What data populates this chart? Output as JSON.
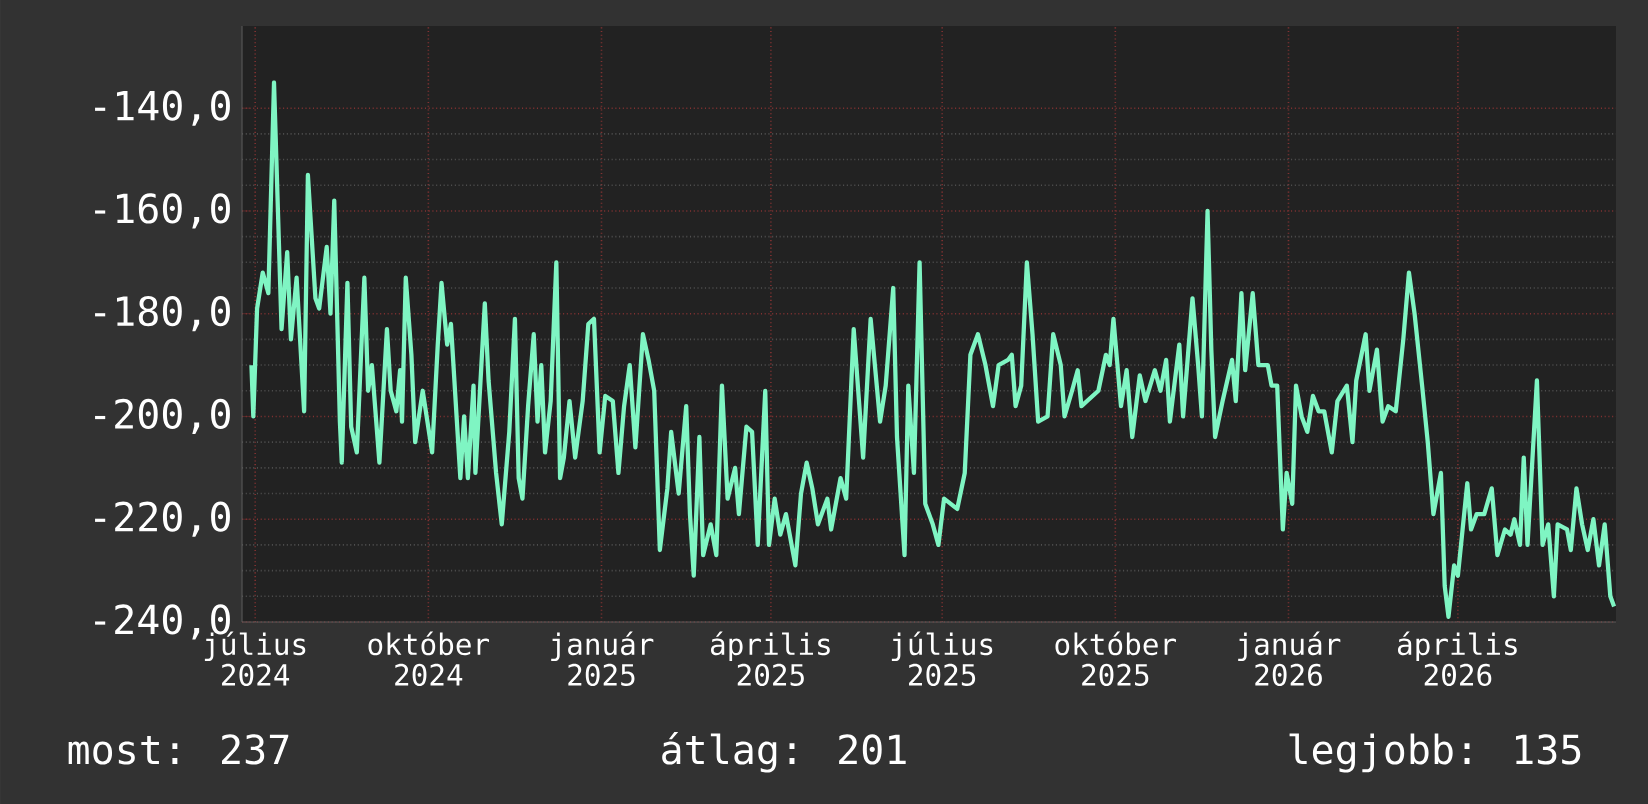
{
  "chart_data": {
    "type": "line",
    "color": "#7ff5c3",
    "grid": true,
    "x": [
      "2024-06-29",
      "2024-06-30",
      "2024-07-02",
      "2024-07-05",
      "2024-07-08",
      "2024-07-11",
      "2024-07-15",
      "2024-07-18",
      "2024-07-20",
      "2024-07-23",
      "2024-07-27",
      "2024-07-29",
      "2024-08-02",
      "2024-08-04",
      "2024-08-08",
      "2024-08-10",
      "2024-08-12",
      "2024-08-15",
      "2024-08-16",
      "2024-08-19",
      "2024-08-21",
      "2024-08-24",
      "2024-08-28",
      "2024-08-30",
      "2024-09-01",
      "2024-09-05",
      "2024-09-09",
      "2024-09-11",
      "2024-09-14",
      "2024-09-16",
      "2024-09-17",
      "2024-09-19",
      "2024-09-22",
      "2024-09-24",
      "2024-09-28",
      "2024-10-03",
      "2024-10-06",
      "2024-10-08",
      "2024-10-11",
      "2024-10-13",
      "2024-10-18",
      "2024-10-20",
      "2024-10-22",
      "2024-10-25",
      "2024-10-26",
      "2024-10-31",
      "2024-11-02",
      "2024-11-06",
      "2024-11-09",
      "2024-11-13",
      "2024-11-16",
      "2024-11-18",
      "2024-11-20",
      "2024-11-23",
      "2024-11-26",
      "2024-11-28",
      "2024-11-30",
      "2024-12-02",
      "2024-12-05",
      "2024-12-08",
      "2024-12-10",
      "2024-12-12",
      "2024-12-15",
      "2024-12-18",
      "2024-12-22",
      "2024-12-25",
      "2024-12-28",
      "2024-12-31",
      "2025-01-03",
      "2025-01-07",
      "2025-01-10",
      "2025-01-13",
      "2025-01-16",
      "2025-01-19",
      "2025-01-23",
      "2025-01-26",
      "2025-01-29",
      "2025-02-01",
      "2025-02-05",
      "2025-02-07",
      "2025-02-11",
      "2025-02-15",
      "2025-02-17",
      "2025-02-19",
      "2025-02-22",
      "2025-02-24",
      "2025-02-28",
      "2025-03-03",
      "2025-03-06",
      "2025-03-09",
      "2025-03-13",
      "2025-03-15",
      "2025-03-19",
      "2025-03-22",
      "2025-03-25",
      "2025-03-29",
      "2025-03-31",
      "2025-04-03",
      "2025-04-06",
      "2025-04-09",
      "2025-04-14",
      "2025-04-17",
      "2025-04-20",
      "2025-04-23",
      "2025-04-26",
      "2025-05-01",
      "2025-05-03",
      "2025-05-08",
      "2025-05-11",
      "2025-05-15",
      "2025-05-20",
      "2025-05-24",
      "2025-05-29",
      "2025-06-01",
      "2025-06-05",
      "2025-06-07",
      "2025-06-11",
      "2025-06-13",
      "2025-06-16",
      "2025-06-19",
      "2025-06-22",
      "2025-06-26",
      "2025-06-29",
      "2025-07-02",
      "2025-07-09",
      "2025-07-13",
      "2025-07-16",
      "2025-07-20",
      "2025-07-24",
      "2025-07-28",
      "2025-07-31",
      "2025-08-05",
      "2025-08-07",
      "2025-08-09",
      "2025-08-12",
      "2025-08-15",
      "2025-08-18",
      "2025-08-21",
      "2025-08-26",
      "2025-08-29",
      "2025-09-02",
      "2025-09-04",
      "2025-09-08",
      "2025-09-11",
      "2025-09-13",
      "2025-09-22",
      "2025-09-26",
      "2025-09-28",
      "2025-09-30",
      "2025-10-04",
      "2025-10-07",
      "2025-10-10",
      "2025-10-14",
      "2025-10-17",
      "2025-10-22",
      "2025-10-25",
      "2025-10-28",
      "2025-10-30",
      "2025-11-04",
      "2025-11-06",
      "2025-11-11",
      "2025-11-14",
      "2025-11-16",
      "2025-11-19",
      "2025-11-21",
      "2025-11-23",
      "2025-11-27",
      "2025-12-02",
      "2025-12-04",
      "2025-12-07",
      "2025-12-09",
      "2025-12-13",
      "2025-12-16",
      "2025-12-21",
      "2025-12-23",
      "2025-12-26",
      "2025-12-29",
      "2025-12-31",
      "2026-01-03",
      "2026-01-05",
      "2026-01-08",
      "2026-01-11",
      "2026-01-14",
      "2026-01-17",
      "2026-01-20",
      "2026-01-24",
      "2026-01-27",
      "2026-02-01",
      "2026-02-04",
      "2026-02-06",
      "2026-02-11",
      "2026-02-13",
      "2026-02-17",
      "2026-02-20",
      "2026-02-23",
      "2026-02-27",
      "2026-03-03",
      "2026-03-06",
      "2026-03-09",
      "2026-03-13",
      "2026-03-16",
      "2026-03-19",
      "2026-03-23",
      "2026-03-25",
      "2026-03-27",
      "2026-03-30",
      "2026-04-01",
      "2026-04-06",
      "2026-04-08",
      "2026-04-11",
      "2026-04-15",
      "2026-04-19",
      "2026-04-22",
      "2026-04-26",
      "2026-04-29",
      "2026-05-01",
      "2026-05-04",
      "2026-05-06",
      "2026-05-08",
      "2026-05-13",
      "2026-05-16",
      "2026-05-19",
      "2026-05-22",
      "2026-05-24",
      "2026-05-29",
      "2026-05-31",
      "2026-06-03",
      "2026-06-06",
      "2026-06-09",
      "2026-06-12",
      "2026-06-15",
      "2026-06-18",
      "2026-06-21",
      "2026-06-23"
    ],
    "values": [
      -190,
      -200,
      -179,
      -172,
      -176,
      -135,
      -183,
      -168,
      -185,
      -173,
      -199,
      -153,
      -177,
      -179,
      -167,
      -180,
      -158,
      -201,
      -209,
      -174,
      -202,
      -207,
      -173,
      -195,
      -190,
      -209,
      -183,
      -195,
      -199,
      -191,
      -201,
      -173,
      -188,
      -205,
      -195,
      -207,
      -186,
      -174,
      -186,
      -182,
      -212,
      -200,
      -212,
      -194,
      -211,
      -178,
      -193,
      -211,
      -221,
      -203,
      -181,
      -212,
      -216,
      -198,
      -184,
      -201,
      -190,
      -207,
      -197,
      -170,
      -212,
      -208,
      -197,
      -208,
      -197,
      -182,
      -181,
      -207,
      -196,
      -197,
      -211,
      -198,
      -190,
      -206,
      -184,
      -189,
      -195,
      -226,
      -214,
      -203,
      -215,
      -198,
      -219,
      -231,
      -204,
      -227,
      -221,
      -227,
      -194,
      -216,
      -210,
      -219,
      -202,
      -203,
      -225,
      -195,
      -225,
      -216,
      -223,
      -219,
      -229,
      -215,
      -209,
      -214,
      -221,
      -216,
      -222,
      -212,
      -216,
      -183,
      -208,
      -181,
      -201,
      -194,
      -175,
      -204,
      -227,
      -194,
      -211,
      -170,
      -217,
      -221,
      -225,
      -216,
      -218,
      -211,
      -188,
      -184,
      -190,
      -198,
      -190,
      -189,
      -188,
      -198,
      -194,
      -170,
      -184,
      -201,
      -200,
      -184,
      -190,
      -200,
      -195,
      -191,
      -198,
      -195,
      -188,
      -190,
      -181,
      -198,
      -191,
      -204,
      -192,
      -197,
      -191,
      -195,
      -189,
      -201,
      -186,
      -200,
      -177,
      -190,
      -200,
      -160,
      -187,
      -204,
      -197,
      -189,
      -197,
      -176,
      -191,
      -176,
      -190,
      -190,
      -194,
      -194,
      -222,
      -211,
      -217,
      -194,
      -200,
      -203,
      -196,
      -199,
      -199,
      -207,
      -197,
      -194,
      -205,
      -193,
      -184,
      -195,
      -187,
      -201,
      -198,
      -199,
      -185,
      -172,
      -180,
      -194,
      -205,
      -219,
      -211,
      -233,
      -239,
      -229,
      -231,
      -213,
      -222,
      -219,
      -219,
      -214,
      -227,
      -222,
      -223,
      -220,
      -225,
      -208,
      -225,
      -193,
      -225,
      -221,
      -235,
      -221,
      -222,
      -226,
      -214,
      -221,
      -226,
      -220,
      -229,
      -221,
      -235,
      -237
    ],
    "xlim": [
      "2024-06-24",
      "2026-06-24"
    ],
    "xticks": [
      {
        "value": "2024-07-01",
        "label": "július 2024"
      },
      {
        "value": "2024-10-01",
        "label": "október 2024"
      },
      {
        "value": "2025-01-01",
        "label": "január 2025"
      },
      {
        "value": "2025-04-01",
        "label": "április 2025"
      },
      {
        "value": "2025-07-01",
        "label": "július 2025"
      },
      {
        "value": "2025-10-01",
        "label": "október 2025"
      },
      {
        "value": "2026-01-01",
        "label": "január 2026"
      },
      {
        "value": "2026-04-01",
        "label": "április 2026"
      }
    ],
    "ylim": [
      -240,
      -124
    ],
    "yticks": [
      {
        "value": -140,
        "label": "-140,0"
      },
      {
        "value": -160,
        "label": "-160,0"
      },
      {
        "value": -180,
        "label": "-180,0"
      },
      {
        "value": -200,
        "label": "-200,0"
      },
      {
        "value": -220,
        "label": "-220,0"
      },
      {
        "value": -240,
        "label": "-240,0"
      }
    ],
    "annotations": [
      "most: 237",
      "átlag: 201",
      "legjobb: 135"
    ]
  }
}
